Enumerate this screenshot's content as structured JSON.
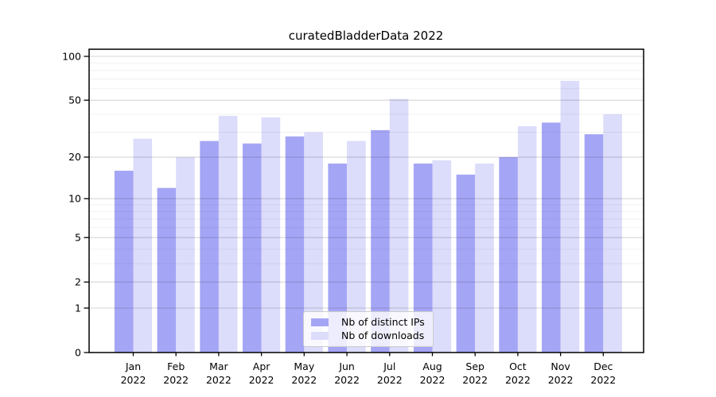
{
  "figure": {
    "background": "#ffffff"
  },
  "chart_data": {
    "type": "bar",
    "title": "curatedBladderData 2022",
    "categories": [
      "Jan 2022",
      "Feb 2022",
      "Mar 2022",
      "Apr 2022",
      "May 2022",
      "Jun 2022",
      "Jul 2022",
      "Aug 2022",
      "Sep 2022",
      "Oct 2022",
      "Nov 2022",
      "Dec 2022"
    ],
    "series": [
      {
        "name": "Nb of distinct IPs",
        "color": "#a5a5f6",
        "values": [
          16,
          12,
          26,
          25,
          28,
          18,
          31,
          18,
          15,
          20,
          35,
          29
        ]
      },
      {
        "name": "Nb of downloads",
        "color": "#dcdcfb",
        "values": [
          27,
          20,
          39,
          38,
          30,
          26,
          51,
          19,
          18,
          33,
          68,
          40
        ]
      }
    ],
    "xlabel": "",
    "ylabel": "",
    "yscale": "log1p",
    "ylim": [
      0,
      111
    ],
    "yticks": [
      0,
      1,
      2,
      5,
      10,
      20,
      50,
      100
    ],
    "minor_yticks": [
      3,
      4,
      6,
      7,
      8,
      9,
      30,
      40,
      60,
      70,
      80,
      90
    ],
    "grid": true,
    "legend_position": "lower-center"
  },
  "colors": {
    "spine": "#000000",
    "tick_text": "#000000",
    "major_grid": "rgba(0,0,0,0.16)",
    "minor_grid": "rgba(0,0,0,0.055)"
  }
}
